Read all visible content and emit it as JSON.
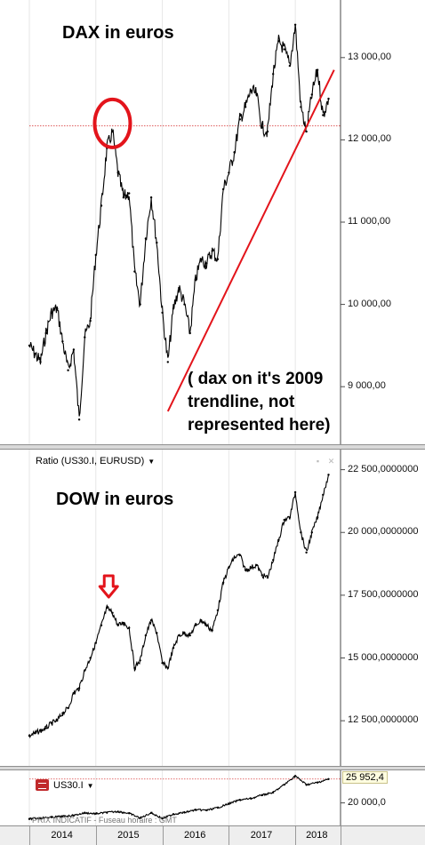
{
  "chart_data": [
    {
      "type": "line",
      "title": "DAX in euros",
      "ylim": [
        8300,
        13700
      ],
      "yticks": [
        9000,
        10000,
        11000,
        12000,
        13000
      ],
      "ytick_labels": [
        "9 000,00",
        "10 000,00",
        "11 000,00",
        "12 000,00",
        "13 000,00"
      ],
      "reference_level": 12170,
      "x": [
        "2014-01",
        "2014-02",
        "2014-03",
        "2014-04",
        "2014-05",
        "2014-06",
        "2014-07",
        "2014-08",
        "2014-09",
        "2014-10",
        "2014-11",
        "2014-12",
        "2015-01",
        "2015-02",
        "2015-03",
        "2015-04",
        "2015-05",
        "2015-06",
        "2015-07",
        "2015-08",
        "2015-09",
        "2015-10",
        "2015-11",
        "2015-12",
        "2016-01",
        "2016-02",
        "2016-03",
        "2016-04",
        "2016-05",
        "2016-06",
        "2016-07",
        "2016-08",
        "2016-09",
        "2016-10",
        "2016-11",
        "2016-12",
        "2017-01",
        "2017-02",
        "2017-03",
        "2017-04",
        "2017-05",
        "2017-06",
        "2017-07",
        "2017-08",
        "2017-09",
        "2017-10",
        "2017-11",
        "2017-12",
        "2018-01",
        "2018-02",
        "2018-03",
        "2018-04",
        "2018-05",
        "2018-06",
        "2018-07"
      ],
      "values": [
        9500,
        9400,
        9300,
        9650,
        9900,
        9950,
        9550,
        9200,
        9450,
        8600,
        9600,
        9800,
        10600,
        11200,
        11900,
        12100,
        11600,
        11300,
        11350,
        10400,
        10000,
        10800,
        11300,
        10750,
        9900,
        9300,
        9950,
        10200,
        10000,
        9650,
        10300,
        10550,
        10500,
        10650,
        10550,
        11400,
        11600,
        11850,
        12250,
        12400,
        12600,
        12550,
        12150,
        12100,
        12800,
        13200,
        13100,
        12900,
        13400,
        12400,
        12100,
        12550,
        12850,
        12300,
        12500
      ],
      "annotations": [
        {
          "type": "circle",
          "at": "2015-04",
          "value": 12200
        },
        {
          "type": "trendline",
          "from": {
            "x": "2016-02",
            "y": 8700
          },
          "to": {
            "x": "2018-08",
            "y": 12850
          }
        },
        {
          "type": "text",
          "text": "( dax on it's 2009 trendline, not represented here)"
        }
      ]
    },
    {
      "type": "line",
      "title": "DOW in euros",
      "header": "Ratio (US30.I, EURUSD)",
      "ylim": [
        10700,
        23300
      ],
      "yticks": [
        12500,
        15000,
        17500,
        20000,
        22500
      ],
      "ytick_labels": [
        "12 500,0000000",
        "15 000,0000000",
        "17 500,0000000",
        "20 000,0000000",
        "22 500,0000000"
      ],
      "x": [
        "2014-01",
        "2014-02",
        "2014-03",
        "2014-04",
        "2014-05",
        "2014-06",
        "2014-07",
        "2014-08",
        "2014-09",
        "2014-10",
        "2014-11",
        "2014-12",
        "2015-01",
        "2015-02",
        "2015-03",
        "2015-04",
        "2015-05",
        "2015-06",
        "2015-07",
        "2015-08",
        "2015-09",
        "2015-10",
        "2015-11",
        "2015-12",
        "2016-01",
        "2016-02",
        "2016-03",
        "2016-04",
        "2016-05",
        "2016-06",
        "2016-07",
        "2016-08",
        "2016-09",
        "2016-10",
        "2016-11",
        "2016-12",
        "2017-01",
        "2017-02",
        "2017-03",
        "2017-04",
        "2017-05",
        "2017-06",
        "2017-07",
        "2017-08",
        "2017-09",
        "2017-10",
        "2017-11",
        "2017-12",
        "2018-01",
        "2018-02",
        "2018-03",
        "2018-04",
        "2018-05",
        "2018-06",
        "2018-07"
      ],
      "values": [
        11900,
        12000,
        12100,
        12200,
        12400,
        12500,
        12800,
        13000,
        13600,
        13800,
        14500,
        15000,
        15600,
        16300,
        17000,
        16800,
        16300,
        16400,
        16200,
        14600,
        14900,
        15900,
        16500,
        16000,
        14800,
        14600,
        15400,
        15900,
        16000,
        15900,
        16300,
        16500,
        16300,
        16100,
        16900,
        18000,
        18600,
        19000,
        19100,
        18500,
        18600,
        18700,
        18300,
        18200,
        18900,
        19700,
        20500,
        20600,
        21600,
        20000,
        19200,
        20000,
        20600,
        21500,
        22300
      ],
      "annotations": [
        {
          "type": "arrow",
          "at": "2015-03",
          "direction": "down"
        }
      ]
    },
    {
      "type": "line",
      "title": "US30.I",
      "last_value_label": "25 952,4",
      "ylim": [
        14800,
        27500
      ],
      "yticks": [
        20000
      ],
      "ytick_labels": [
        "20 000,0"
      ],
      "x": [
        "2014-01",
        "2014-03",
        "2014-05",
        "2014-07",
        "2014-09",
        "2014-11",
        "2015-01",
        "2015-03",
        "2015-05",
        "2015-07",
        "2015-09",
        "2015-11",
        "2016-01",
        "2016-03",
        "2016-05",
        "2016-07",
        "2016-09",
        "2016-11",
        "2017-01",
        "2017-03",
        "2017-05",
        "2017-07",
        "2017-09",
        "2017-11",
        "2018-01",
        "2018-03",
        "2018-05",
        "2018-07"
      ],
      "values": [
        16300,
        16500,
        16700,
        16900,
        17100,
        17700,
        17500,
        17800,
        18000,
        17600,
        16500,
        17700,
        16400,
        17400,
        17800,
        18400,
        18300,
        18900,
        19800,
        20700,
        21000,
        21800,
        22400,
        24200,
        26200,
        24200,
        24700,
        25500
      ],
      "time_axis": [
        "2014",
        "2015",
        "2016",
        "2017",
        "2018"
      ]
    }
  ],
  "panel3": {
    "footer_note": "PRIX INDICATIF - Fuseau horaire : GMT"
  },
  "colors": {
    "series": "#000000",
    "annotation": "#e3141b",
    "reference_line": "#d94040",
    "grid": "#e6e6e6"
  },
  "icons": {
    "cfd": "cfd-icon",
    "maximize": "maximize-icon",
    "close": "close-icon"
  }
}
